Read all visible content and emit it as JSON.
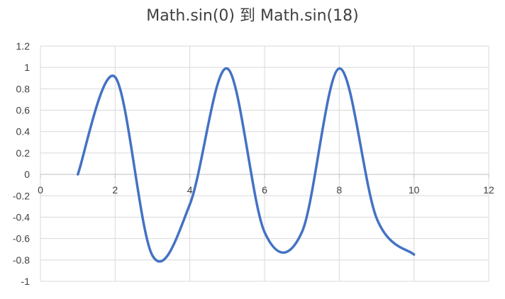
{
  "chart_data": {
    "type": "line",
    "title": "Math.sin(0) 到 Math.sin(18)",
    "xlabel": "",
    "ylabel": "",
    "xlim": [
      0,
      12
    ],
    "ylim": [
      -1,
      1.2
    ],
    "xticks": [
      0,
      2,
      4,
      6,
      8,
      10,
      12
    ],
    "yticks": [
      1.2,
      1,
      0.8,
      0.6,
      0.4,
      0.2,
      0,
      -0.2,
      -0.4,
      -0.6,
      -0.8,
      -1
    ],
    "grid": true,
    "legend": "none",
    "series": [
      {
        "color": "#4472c4",
        "x": [
          1,
          2,
          3,
          4,
          5,
          6,
          7,
          8,
          9,
          10
        ],
        "y": [
          0,
          0.91,
          -0.76,
          -0.28,
          0.99,
          -0.54,
          -0.54,
          0.99,
          -0.41,
          -0.75
        ]
      }
    ],
    "colors": {
      "grid": "#d9d9d9",
      "axis": "#bfbfbf",
      "text": "#404040"
    }
  }
}
